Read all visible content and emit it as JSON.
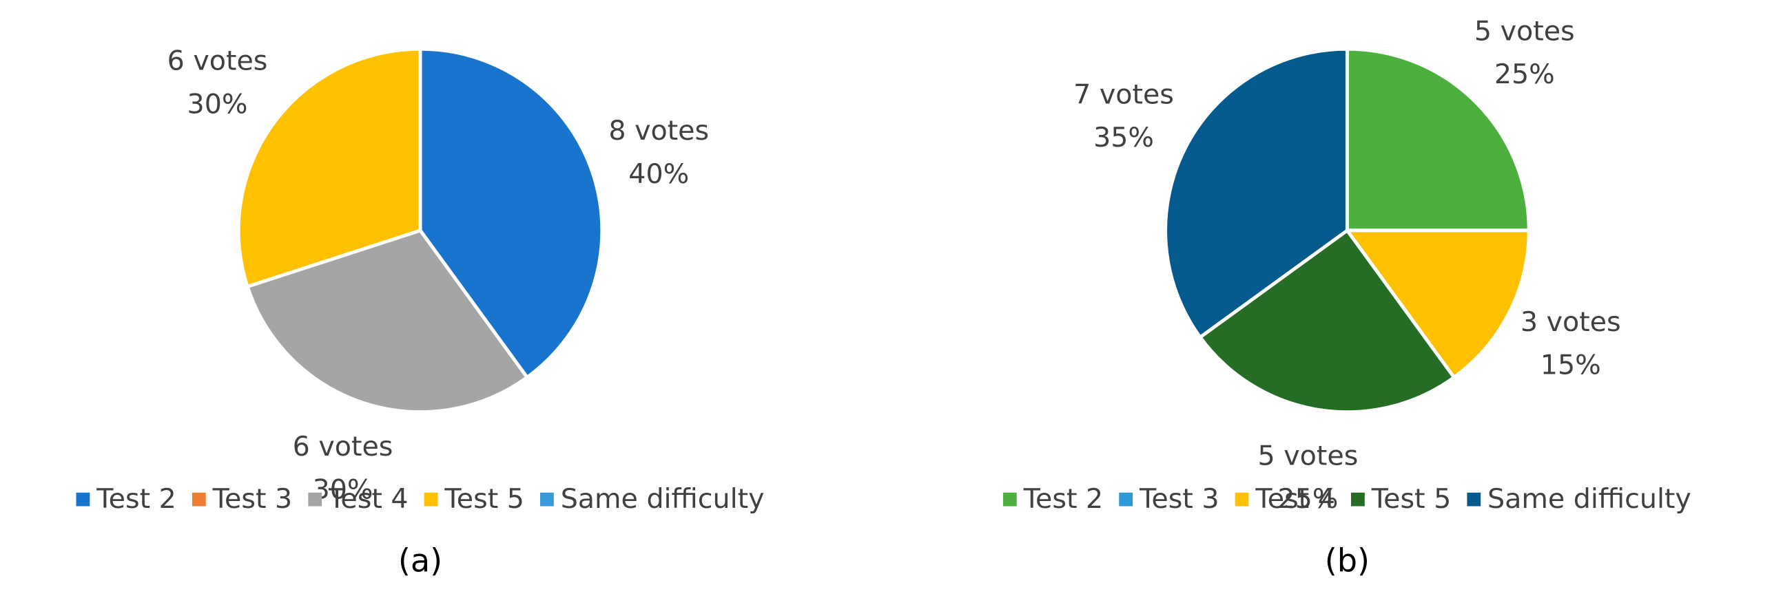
{
  "chart_data": [
    {
      "type": "pie",
      "caption": "(a)",
      "categories": [
        "Test 2",
        "Test 3",
        "Test 4",
        "Test 5",
        "Same difficulty"
      ],
      "values": [
        8,
        0,
        6,
        6,
        0
      ],
      "value_labels": [
        [
          "8 votes",
          "40%"
        ],
        null,
        [
          "6 votes",
          "30%"
        ],
        [
          "6 votes",
          "30%"
        ],
        null
      ],
      "colors": [
        "#1874cd",
        "#ed7d31",
        "#a5a5a5",
        "#ffc000",
        "#3a9ad9"
      ]
    },
    {
      "type": "pie",
      "caption": "(b)",
      "categories": [
        "Test 2",
        "Test 3",
        "Test 4",
        "Test 5",
        "Same difficulty"
      ],
      "values": [
        5,
        0,
        3,
        5,
        7
      ],
      "value_labels": [
        [
          "5 votes",
          "25%"
        ],
        null,
        [
          "3 votes",
          "15%"
        ],
        [
          "5 votes",
          "25%"
        ],
        [
          "7 votes",
          "35%"
        ]
      ],
      "colors": [
        "#4caf3e",
        "#2e9ad8",
        "#ffc000",
        "#256c25",
        "#045a8d"
      ]
    }
  ]
}
